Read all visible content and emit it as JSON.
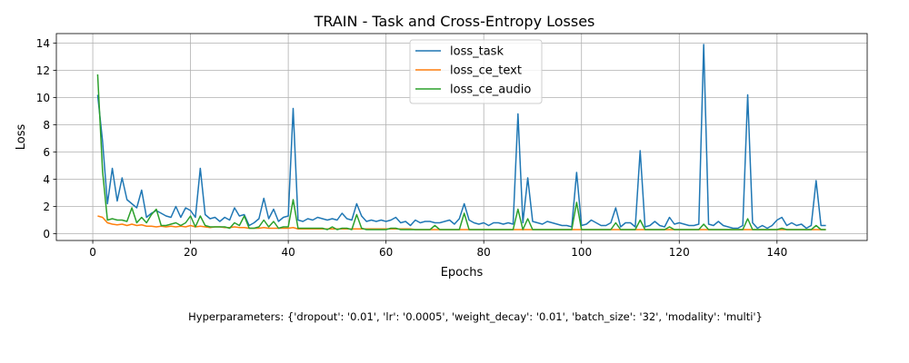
{
  "chart_data": {
    "type": "line",
    "title": "TRAIN - Task and Cross-Entropy Losses",
    "xlabel": "Epochs",
    "ylabel": "Loss",
    "xlim": [
      -7.45,
      158.45
    ],
    "ylim": [
      -0.5,
      14.7
    ],
    "xticks": [
      0,
      20,
      40,
      60,
      80,
      100,
      120,
      140
    ],
    "yticks": [
      0,
      2,
      4,
      6,
      8,
      10,
      12,
      14
    ],
    "grid": true,
    "legend_position": "upper-center",
    "footnote": "Hyperparameters: {'dropout': '0.01', 'lr': '0.0005', 'weight_decay': '0.01', 'batch_size': '32', 'modality': 'multi'}",
    "series": [
      {
        "name": "loss_task",
        "color": "#1f77b4",
        "x": [
          1,
          2,
          3,
          4,
          5,
          6,
          7,
          8,
          9,
          10,
          11,
          12,
          13,
          14,
          15,
          16,
          17,
          18,
          19,
          20,
          21,
          22,
          23,
          24,
          25,
          26,
          27,
          28,
          29,
          30,
          31,
          32,
          33,
          34,
          35,
          36,
          37,
          38,
          39,
          40,
          41,
          42,
          43,
          44,
          45,
          46,
          47,
          48,
          49,
          50,
          51,
          52,
          53,
          54,
          55,
          56,
          57,
          58,
          59,
          60,
          61,
          62,
          63,
          64,
          65,
          66,
          67,
          68,
          69,
          70,
          71,
          72,
          73,
          74,
          75,
          76,
          77,
          78,
          79,
          80,
          81,
          82,
          83,
          84,
          85,
          86,
          87,
          88,
          89,
          90,
          91,
          92,
          93,
          94,
          95,
          96,
          97,
          98,
          99,
          100,
          101,
          102,
          103,
          104,
          105,
          106,
          107,
          108,
          109,
          110,
          111,
          112,
          113,
          114,
          115,
          116,
          117,
          118,
          119,
          120,
          121,
          122,
          123,
          124,
          125,
          126,
          127,
          128,
          129,
          130,
          131,
          132,
          133,
          134,
          135,
          136,
          137,
          138,
          139,
          140,
          141,
          142,
          143,
          144,
          145,
          146,
          147,
          148,
          149,
          150
        ],
        "values": [
          10.2,
          6.8,
          2.2,
          4.8,
          2.4,
          4.1,
          2.5,
          2.2,
          1.9,
          3.2,
          1.2,
          1.5,
          1.7,
          1.5,
          1.3,
          1.2,
          2.0,
          1.2,
          1.9,
          1.7,
          1.2,
          4.8,
          1.4,
          1.1,
          1.2,
          0.9,
          1.2,
          1.0,
          1.9,
          1.3,
          1.4,
          0.6,
          0.8,
          1.1,
          2.6,
          1.1,
          1.8,
          0.9,
          1.2,
          1.3,
          9.2,
          1.0,
          0.9,
          1.1,
          1.0,
          1.2,
          1.1,
          1.0,
          1.1,
          1.0,
          1.5,
          1.1,
          1.0,
          2.2,
          1.3,
          0.9,
          1.0,
          0.9,
          1.0,
          0.9,
          1.0,
          1.2,
          0.8,
          0.9,
          0.6,
          1.0,
          0.8,
          0.9,
          0.9,
          0.8,
          0.8,
          0.9,
          1.0,
          0.7,
          1.1,
          2.2,
          1.0,
          0.8,
          0.7,
          0.8,
          0.6,
          0.8,
          0.8,
          0.7,
          0.8,
          0.7,
          8.8,
          0.8,
          4.1,
          0.9,
          0.8,
          0.7,
          0.9,
          0.8,
          0.7,
          0.6,
          0.6,
          0.5,
          4.5,
          0.6,
          0.7,
          1.0,
          0.8,
          0.6,
          0.6,
          0.8,
          1.9,
          0.5,
          0.8,
          0.8,
          0.5,
          6.1,
          0.5,
          0.6,
          0.9,
          0.6,
          0.5,
          1.2,
          0.7,
          0.8,
          0.7,
          0.6,
          0.6,
          0.7,
          13.9,
          0.7,
          0.6,
          0.9,
          0.6,
          0.5,
          0.4,
          0.4,
          0.6,
          10.2,
          0.8,
          0.4,
          0.6,
          0.4,
          0.6,
          1.0,
          1.2,
          0.6,
          0.8,
          0.6,
          0.7,
          0.4,
          0.6,
          3.9,
          0.6,
          0.6
        ]
      },
      {
        "name": "loss_ce_text",
        "color": "#ff7f0e",
        "x": [
          1,
          2,
          3,
          4,
          5,
          6,
          7,
          8,
          9,
          10,
          11,
          12,
          13,
          14,
          15,
          16,
          17,
          18,
          19,
          20,
          21,
          22,
          23,
          24,
          25,
          26,
          27,
          28,
          29,
          30,
          31,
          32,
          33,
          34,
          35,
          36,
          37,
          38,
          39,
          40,
          41,
          42,
          43,
          44,
          45,
          46,
          47,
          48,
          49,
          50,
          51,
          52,
          53,
          54,
          55,
          56,
          57,
          58,
          59,
          60,
          61,
          62,
          63,
          64,
          65,
          66,
          67,
          68,
          69,
          70,
          71,
          72,
          73,
          74,
          75,
          76,
          77,
          78,
          79,
          80,
          81,
          82,
          83,
          84,
          85,
          86,
          87,
          88,
          89,
          90,
          91,
          92,
          93,
          94,
          95,
          96,
          97,
          98,
          99,
          100,
          101,
          102,
          103,
          104,
          105,
          106,
          107,
          108,
          109,
          110,
          111,
          112,
          113,
          114,
          115,
          116,
          117,
          118,
          119,
          120,
          121,
          122,
          123,
          124,
          125,
          126,
          127,
          128,
          129,
          130,
          131,
          132,
          133,
          134,
          135,
          136,
          137,
          138,
          139,
          140,
          141,
          142,
          143,
          144,
          145,
          146,
          147,
          148,
          149,
          150
        ],
        "values": [
          1.3,
          1.2,
          0.8,
          0.7,
          0.65,
          0.7,
          0.6,
          0.7,
          0.6,
          0.65,
          0.55,
          0.55,
          0.5,
          0.55,
          0.5,
          0.55,
          0.5,
          0.55,
          0.5,
          0.6,
          0.5,
          0.55,
          0.5,
          0.45,
          0.5,
          0.5,
          0.45,
          0.45,
          0.5,
          0.45,
          0.45,
          0.4,
          0.4,
          0.4,
          0.45,
          0.4,
          0.4,
          0.4,
          0.4,
          0.4,
          0.45,
          0.35,
          0.35,
          0.35,
          0.35,
          0.35,
          0.35,
          0.35,
          0.35,
          0.35,
          0.35,
          0.35,
          0.35,
          0.35,
          0.35,
          0.35,
          0.35,
          0.35,
          0.35,
          0.35,
          0.35,
          0.35,
          0.35,
          0.35,
          0.35,
          0.3,
          0.3,
          0.3,
          0.3,
          0.3,
          0.3,
          0.3,
          0.3,
          0.3,
          0.3,
          0.3,
          0.3,
          0.3,
          0.3,
          0.3,
          0.3,
          0.3,
          0.3,
          0.3,
          0.3,
          0.3,
          0.3,
          0.3,
          0.3,
          0.3,
          0.3,
          0.3,
          0.3,
          0.3,
          0.3,
          0.3,
          0.3,
          0.3,
          0.3,
          0.3,
          0.3,
          0.3,
          0.3,
          0.3,
          0.3,
          0.3,
          0.3,
          0.3,
          0.3,
          0.3,
          0.3,
          0.3,
          0.3,
          0.3,
          0.3,
          0.3,
          0.3,
          0.3,
          0.3,
          0.3,
          0.3,
          0.3,
          0.3,
          0.3,
          0.3,
          0.3,
          0.3,
          0.3,
          0.3,
          0.3,
          0.3,
          0.3,
          0.3,
          0.3,
          0.3,
          0.3,
          0.3,
          0.3,
          0.3,
          0.3,
          0.3,
          0.3,
          0.3,
          0.3,
          0.3,
          0.3,
          0.3,
          0.3,
          0.3,
          0.3
        ]
      },
      {
        "name": "loss_ce_audio",
        "color": "#2ca02c",
        "x": [
          1,
          2,
          3,
          4,
          5,
          6,
          7,
          8,
          9,
          10,
          11,
          12,
          13,
          14,
          15,
          16,
          17,
          18,
          19,
          20,
          21,
          22,
          23,
          24,
          25,
          26,
          27,
          28,
          29,
          30,
          31,
          32,
          33,
          34,
          35,
          36,
          37,
          38,
          39,
          40,
          41,
          42,
          43,
          44,
          45,
          46,
          47,
          48,
          49,
          50,
          51,
          52,
          53,
          54,
          55,
          56,
          57,
          58,
          59,
          60,
          61,
          62,
          63,
          64,
          65,
          66,
          67,
          68,
          69,
          70,
          71,
          72,
          73,
          74,
          75,
          76,
          77,
          78,
          79,
          80,
          81,
          82,
          83,
          84,
          85,
          86,
          87,
          88,
          89,
          90,
          91,
          92,
          93,
          94,
          95,
          96,
          97,
          98,
          99,
          100,
          101,
          102,
          103,
          104,
          105,
          106,
          107,
          108,
          109,
          110,
          111,
          112,
          113,
          114,
          115,
          116,
          117,
          118,
          119,
          120,
          121,
          122,
          123,
          124,
          125,
          126,
          127,
          128,
          129,
          130,
          131,
          132,
          133,
          134,
          135,
          136,
          137,
          138,
          139,
          140,
          141,
          142,
          143,
          144,
          145,
          146,
          147,
          148,
          149,
          150
        ],
        "values": [
          11.7,
          4.6,
          1.0,
          1.1,
          1.0,
          1.0,
          0.9,
          1.9,
          0.8,
          1.2,
          0.8,
          1.4,
          1.8,
          0.6,
          0.6,
          0.7,
          0.8,
          0.6,
          0.8,
          1.3,
          0.5,
          1.3,
          0.6,
          0.5,
          0.5,
          0.5,
          0.5,
          0.4,
          0.8,
          0.6,
          1.3,
          0.4,
          0.4,
          0.5,
          1.0,
          0.5,
          0.9,
          0.4,
          0.5,
          0.5,
          2.5,
          0.4,
          0.4,
          0.4,
          0.4,
          0.4,
          0.4,
          0.3,
          0.5,
          0.3,
          0.4,
          0.4,
          0.3,
          1.4,
          0.4,
          0.3,
          0.3,
          0.3,
          0.3,
          0.3,
          0.4,
          0.4,
          0.3,
          0.3,
          0.3,
          0.3,
          0.3,
          0.3,
          0.3,
          0.6,
          0.3,
          0.3,
          0.3,
          0.3,
          0.3,
          1.5,
          0.3,
          0.3,
          0.3,
          0.3,
          0.3,
          0.3,
          0.3,
          0.3,
          0.3,
          0.3,
          1.8,
          0.3,
          1.1,
          0.3,
          0.3,
          0.3,
          0.3,
          0.3,
          0.3,
          0.3,
          0.3,
          0.3,
          2.3,
          0.3,
          0.3,
          0.3,
          0.3,
          0.3,
          0.3,
          0.3,
          0.8,
          0.3,
          0.3,
          0.3,
          0.3,
          1.0,
          0.3,
          0.3,
          0.3,
          0.3,
          0.3,
          0.5,
          0.3,
          0.3,
          0.3,
          0.3,
          0.3,
          0.3,
          0.7,
          0.3,
          0.3,
          0.3,
          0.3,
          0.3,
          0.3,
          0.3,
          0.3,
          1.1,
          0.3,
          0.3,
          0.3,
          0.3,
          0.3,
          0.3,
          0.4,
          0.3,
          0.3,
          0.3,
          0.3,
          0.3,
          0.3,
          0.6,
          0.3,
          0.3
        ]
      }
    ]
  }
}
